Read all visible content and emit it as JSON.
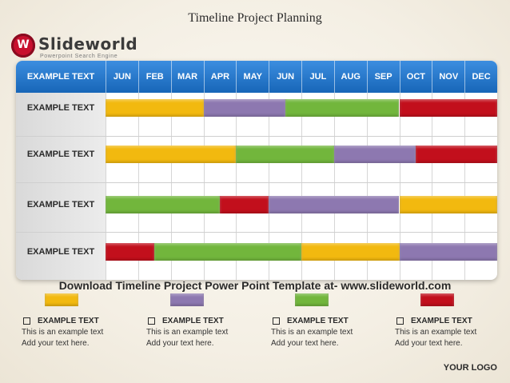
{
  "title": "Timeline Project Planning",
  "logo": {
    "name": "Slideworld",
    "tagline": "Powerpoint Search Engine"
  },
  "table": {
    "corner_label": "EXAMPLE TEXT",
    "months": [
      "JUN",
      "FEB",
      "MAR",
      "APR",
      "MAY",
      "JUN",
      "JUL",
      "AUG",
      "SEP",
      "OCT",
      "NOV",
      "DEC"
    ],
    "rows": [
      {
        "label": "EXAMPLE TEXT",
        "bars": [
          {
            "start": 0,
            "end": 3,
            "color": "yellow"
          },
          {
            "start": 3,
            "end": 5.5,
            "color": "purple"
          },
          {
            "start": 5.5,
            "end": 9,
            "color": "green"
          },
          {
            "start": 9,
            "end": 12,
            "color": "red"
          }
        ]
      },
      {
        "label": "EXAMPLE TEXT",
        "bars": [
          {
            "start": 0,
            "end": 4,
            "color": "yellow"
          },
          {
            "start": 4,
            "end": 7,
            "color": "green"
          },
          {
            "start": 7,
            "end": 9.5,
            "color": "purple"
          },
          {
            "start": 9.5,
            "end": 12,
            "color": "red"
          }
        ]
      },
      {
        "label": "EXAMPLE TEXT",
        "bars": [
          {
            "start": 0,
            "end": 3.5,
            "color": "green"
          },
          {
            "start": 3.5,
            "end": 5,
            "color": "red"
          },
          {
            "start": 5,
            "end": 9,
            "color": "purple"
          },
          {
            "start": 9,
            "end": 12,
            "color": "yellow"
          }
        ]
      },
      {
        "label": "EXAMPLE TEXT",
        "bars": [
          {
            "start": 0,
            "end": 1.5,
            "color": "red"
          },
          {
            "start": 1.5,
            "end": 6,
            "color": "green"
          },
          {
            "start": 6,
            "end": 9,
            "color": "yellow"
          },
          {
            "start": 9,
            "end": 12,
            "color": "purple"
          }
        ]
      }
    ]
  },
  "colors": {
    "yellow": "#f2b90f",
    "purple": "#8d78b0",
    "green": "#72b63c",
    "red": "#c20f1c",
    "header": "#2478cc"
  },
  "download_text": "Download Timeline Project Power Point Template at- www.slideworld.com",
  "legend": [
    {
      "color": "yellow",
      "title": "EXAMPLE TEXT",
      "line1": "This is an example text",
      "line2": "Add your text here."
    },
    {
      "color": "purple",
      "title": "EXAMPLE TEXT",
      "line1": "This is an example text",
      "line2": "Add your text here."
    },
    {
      "color": "green",
      "title": "EXAMPLE TEXT",
      "line1": "This is an example text",
      "line2": "Add your text here."
    },
    {
      "color": "red",
      "title": "EXAMPLE TEXT",
      "line1": "This is an example text",
      "line2": "Add your text here."
    }
  ],
  "footer_logo": "YOUR LOGO"
}
